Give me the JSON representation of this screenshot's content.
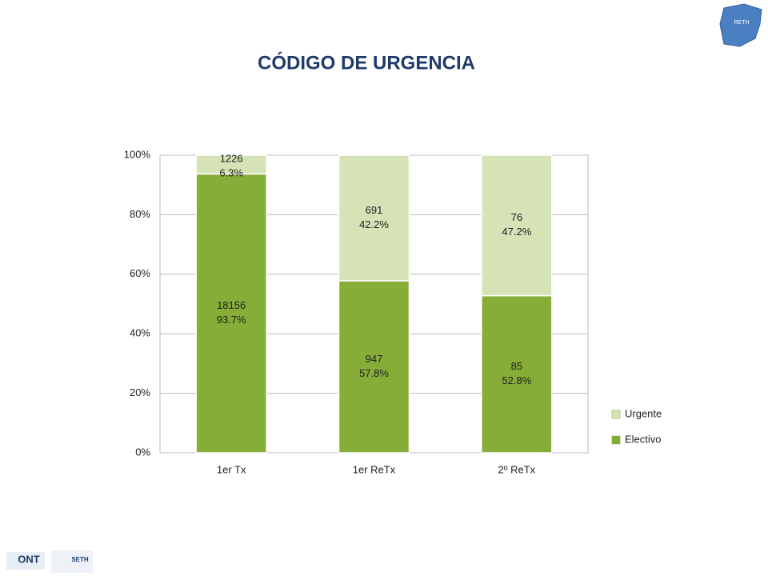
{
  "chart_data": {
    "type": "stacked_bar_100",
    "title": "CÓDIGO DE URGENCIA",
    "categories": [
      "1er Tx",
      "1er ReTx",
      "2º ReTx"
    ],
    "series": [
      {
        "name": "Electivo",
        "color": "#86ad38",
        "values": [
          93.7,
          57.8,
          52.8
        ],
        "value_labels": [
          "93.7%",
          "57.8%",
          "52.8%"
        ],
        "counts": [
          18156,
          947,
          85
        ]
      },
      {
        "name": "Urgente",
        "color": "#d5e3b6",
        "values": [
          6.3,
          42.2,
          47.2
        ],
        "value_labels": [
          "6.3%",
          "42.2%",
          "47.2%"
        ],
        "counts": [
          1226,
          691,
          76
        ]
      }
    ],
    "ylim": [
      0,
      100
    ],
    "yticks": [
      {
        "value": 0,
        "label": "0%"
      },
      {
        "value": 20,
        "label": "20%"
      },
      {
        "value": 40,
        "label": "40%"
      },
      {
        "value": 60,
        "label": "60%"
      },
      {
        "value": 80,
        "label": "80%"
      },
      {
        "value": 100,
        "label": "100%"
      }
    ],
    "grid": true,
    "legend": "right"
  },
  "logos": {
    "map": "RETH",
    "ont": "ONT",
    "seth": "SETH"
  }
}
